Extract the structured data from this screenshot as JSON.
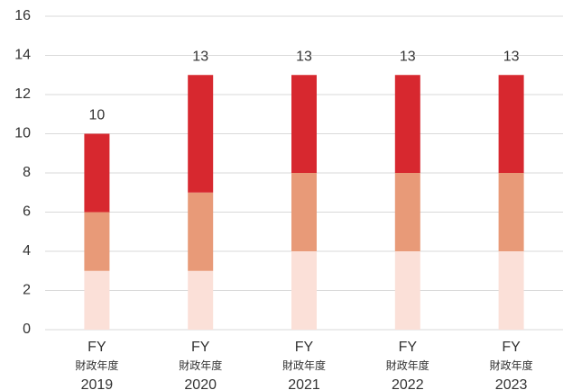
{
  "chart_data": {
    "type": "stacked_bar",
    "categories": [
      [
        "FY",
        "財政年度",
        "2019"
      ],
      [
        "FY",
        "財政年度",
        "2020"
      ],
      [
        "FY",
        "財政年度",
        "2021"
      ],
      [
        "FY",
        "財政年度",
        "2022"
      ],
      [
        "FY",
        "財政年度",
        "2023"
      ]
    ],
    "series": [
      {
        "color": "#fbe0d8",
        "values": [
          3,
          3,
          4,
          4,
          4
        ]
      },
      {
        "color": "#e89a78",
        "values": [
          3,
          4,
          4,
          4,
          4
        ]
      },
      {
        "color": "#d7282f",
        "values": [
          4,
          6,
          5,
          5,
          5
        ]
      }
    ],
    "totals": [
      10,
      13,
      13,
      13,
      13
    ],
    "ylim": [
      0,
      16
    ],
    "yticks": [
      0,
      2,
      4,
      6,
      8,
      10,
      12,
      14,
      16
    ],
    "grid": true
  }
}
